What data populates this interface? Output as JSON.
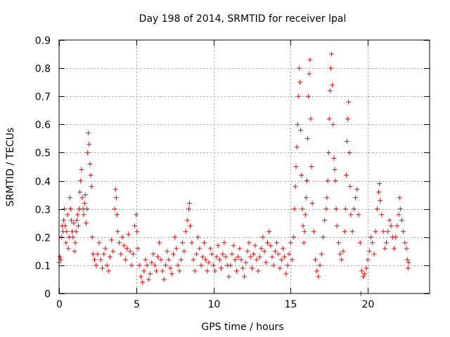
{
  "chart_data": {
    "type": "scatter",
    "title": "Day 198 of 2014, SRMTID for receiver lpal",
    "xlabel": "GPS time / hours",
    "ylabel": "SRMTID / TECUs",
    "xlim": [
      0,
      24
    ],
    "ylim": [
      0,
      0.9
    ],
    "xticks": [
      0,
      5,
      10,
      15,
      20
    ],
    "yticks": [
      0,
      0.1,
      0.2,
      0.3,
      0.4,
      0.5,
      0.6,
      0.7,
      0.8,
      0.9
    ],
    "xtick_labels": [
      "0",
      "5",
      "10",
      "15",
      "20"
    ],
    "ytick_labels": [
      "0",
      "0.1",
      "0.2",
      "0.3",
      "0.4",
      "0.5",
      "0.6",
      "0.7",
      "0.8",
      "0.9"
    ],
    "grid": true,
    "marker": "+",
    "color": "#ff0000",
    "series": [
      {
        "name": "SRMTID",
        "points": [
          [
            0.0,
            0.11
          ],
          [
            0.05,
            0.13
          ],
          [
            0.1,
            0.12
          ],
          [
            0.15,
            0.2
          ],
          [
            0.2,
            0.24
          ],
          [
            0.25,
            0.22
          ],
          [
            0.3,
            0.26
          ],
          [
            0.35,
            0.3
          ],
          [
            0.4,
            0.24
          ],
          [
            0.45,
            0.18
          ],
          [
            0.5,
            0.22
          ],
          [
            0.55,
            0.28
          ],
          [
            0.6,
            0.16
          ],
          [
            0.65,
            0.2
          ],
          [
            0.7,
            0.34
          ],
          [
            0.75,
            0.3
          ],
          [
            0.8,
            0.26
          ],
          [
            0.85,
            0.22
          ],
          [
            0.9,
            0.2
          ],
          [
            0.95,
            0.25
          ],
          [
            1.0,
            0.15
          ],
          [
            1.05,
            0.18
          ],
          [
            1.1,
            0.22
          ],
          [
            1.15,
            0.26
          ],
          [
            1.2,
            0.28
          ],
          [
            1.25,
            0.24
          ],
          [
            1.3,
            0.3
          ],
          [
            1.35,
            0.36
          ],
          [
            1.4,
            0.4
          ],
          [
            1.45,
            0.44
          ],
          [
            1.5,
            0.34
          ],
          [
            1.55,
            0.3
          ],
          [
            1.6,
            0.28
          ],
          [
            1.65,
            0.32
          ],
          [
            1.7,
            0.35
          ],
          [
            1.75,
            0.25
          ],
          [
            1.8,
            0.3
          ],
          [
            1.85,
            0.5
          ],
          [
            1.9,
            0.57
          ],
          [
            1.95,
            0.53
          ],
          [
            2.0,
            0.46
          ],
          [
            2.05,
            0.42
          ],
          [
            2.1,
            0.38
          ],
          [
            2.15,
            0.2
          ],
          [
            2.2,
            0.14
          ],
          [
            2.3,
            0.12
          ],
          [
            2.4,
            0.1
          ],
          [
            2.5,
            0.14
          ],
          [
            2.6,
            0.18
          ],
          [
            2.7,
            0.12
          ],
          [
            2.8,
            0.09
          ],
          [
            2.9,
            0.14
          ],
          [
            3.0,
            0.16
          ],
          [
            3.1,
            0.1
          ],
          [
            3.2,
            0.08
          ],
          [
            3.3,
            0.13
          ],
          [
            3.4,
            0.19
          ],
          [
            3.5,
            0.15
          ],
          [
            3.6,
            0.3
          ],
          [
            3.65,
            0.37
          ],
          [
            3.7,
            0.34
          ],
          [
            3.75,
            0.28
          ],
          [
            3.8,
            0.22
          ],
          [
            3.9,
            0.18
          ],
          [
            4.0,
            0.14
          ],
          [
            4.1,
            0.2
          ],
          [
            4.2,
            0.17
          ],
          [
            4.3,
            0.12
          ],
          [
            4.4,
            0.16
          ],
          [
            4.5,
            0.21
          ],
          [
            4.6,
            0.15
          ],
          [
            4.7,
            0.1
          ],
          [
            4.8,
            0.14
          ],
          [
            4.9,
            0.24
          ],
          [
            5.0,
            0.28
          ],
          [
            5.05,
            0.22
          ],
          [
            5.1,
            0.16
          ],
          [
            5.2,
            0.1
          ],
          [
            5.3,
            0.06
          ],
          [
            5.4,
            0.04
          ],
          [
            5.5,
            0.08
          ],
          [
            5.6,
            0.12
          ],
          [
            5.7,
            0.1
          ],
          [
            5.8,
            0.05
          ],
          [
            5.9,
            0.07
          ],
          [
            6.0,
            0.11
          ],
          [
            6.1,
            0.14
          ],
          [
            6.2,
            0.1
          ],
          [
            6.3,
            0.08
          ],
          [
            6.4,
            0.13
          ],
          [
            6.5,
            0.18
          ],
          [
            6.6,
            0.12
          ],
          [
            6.7,
            0.08
          ],
          [
            6.8,
            0.05
          ],
          [
            6.9,
            0.1
          ],
          [
            7.0,
            0.15
          ],
          [
            7.1,
            0.12
          ],
          [
            7.2,
            0.09
          ],
          [
            7.3,
            0.07
          ],
          [
            7.4,
            0.14
          ],
          [
            7.5,
            0.2
          ],
          [
            7.6,
            0.16
          ],
          [
            7.7,
            0.1
          ],
          [
            7.8,
            0.08
          ],
          [
            7.9,
            0.12
          ],
          [
            8.0,
            0.18
          ],
          [
            8.1,
            0.15
          ],
          [
            8.2,
            0.22
          ],
          [
            8.3,
            0.26
          ],
          [
            8.4,
            0.3
          ],
          [
            8.45,
            0.32
          ],
          [
            8.5,
            0.24
          ],
          [
            8.6,
            0.18
          ],
          [
            8.7,
            0.12
          ],
          [
            8.8,
            0.08
          ],
          [
            8.9,
            0.14
          ],
          [
            9.0,
            0.2
          ],
          [
            9.1,
            0.16
          ],
          [
            9.2,
            0.1
          ],
          [
            9.3,
            0.13
          ],
          [
            9.4,
            0.18
          ],
          [
            9.5,
            0.12
          ],
          [
            9.6,
            0.08
          ],
          [
            9.7,
            0.11
          ],
          [
            9.8,
            0.16
          ],
          [
            9.9,
            0.14
          ],
          [
            10.0,
            0.1
          ],
          [
            10.1,
            0.08
          ],
          [
            10.2,
            0.13
          ],
          [
            10.3,
            0.17
          ],
          [
            10.4,
            0.12
          ],
          [
            10.5,
            0.09
          ],
          [
            10.6,
            0.14
          ],
          [
            10.7,
            0.18
          ],
          [
            10.8,
            0.13
          ],
          [
            10.9,
            0.1
          ],
          [
            11.0,
            0.06
          ],
          [
            11.1,
            0.1
          ],
          [
            11.2,
            0.14
          ],
          [
            11.3,
            0.17
          ],
          [
            11.4,
            0.12
          ],
          [
            11.5,
            0.08
          ],
          [
            11.6,
            0.13
          ],
          [
            11.7,
            0.16
          ],
          [
            11.8,
            0.12
          ],
          [
            11.9,
            0.09
          ],
          [
            12.0,
            0.06
          ],
          [
            12.1,
            0.11
          ],
          [
            12.2,
            0.15
          ],
          [
            12.3,
            0.18
          ],
          [
            12.4,
            0.13
          ],
          [
            12.5,
            0.09
          ],
          [
            12.6,
            0.14
          ],
          [
            12.7,
            0.17
          ],
          [
            12.8,
            0.12
          ],
          [
            12.9,
            0.08
          ],
          [
            13.0,
            0.13
          ],
          [
            13.1,
            0.16
          ],
          [
            13.2,
            0.2
          ],
          [
            13.3,
            0.15
          ],
          [
            13.4,
            0.11
          ],
          [
            13.5,
            0.18
          ],
          [
            13.6,
            0.22
          ],
          [
            13.7,
            0.17
          ],
          [
            13.8,
            0.13
          ],
          [
            13.9,
            0.1
          ],
          [
            14.0,
            0.15
          ],
          [
            14.1,
            0.18
          ],
          [
            14.2,
            0.14
          ],
          [
            14.3,
            0.09
          ],
          [
            14.4,
            0.12
          ],
          [
            14.5,
            0.16
          ],
          [
            14.6,
            0.13
          ],
          [
            14.7,
            0.07
          ],
          [
            14.8,
            0.1
          ],
          [
            14.9,
            0.14
          ],
          [
            15.0,
            0.18
          ],
          [
            15.1,
            0.12
          ],
          [
            15.2,
            0.2
          ],
          [
            15.25,
            0.3
          ],
          [
            15.3,
            0.38
          ],
          [
            15.35,
            0.45
          ],
          [
            15.4,
            0.52
          ],
          [
            15.45,
            0.6
          ],
          [
            15.5,
            0.7
          ],
          [
            15.55,
            0.8
          ],
          [
            15.6,
            0.75
          ],
          [
            15.65,
            0.58
          ],
          [
            15.7,
            0.42
          ],
          [
            15.75,
            0.3
          ],
          [
            15.8,
            0.24
          ],
          [
            15.85,
            0.18
          ],
          [
            15.9,
            0.22
          ],
          [
            15.95,
            0.28
          ],
          [
            16.0,
            0.34
          ],
          [
            16.05,
            0.4
          ],
          [
            16.1,
            0.55
          ],
          [
            16.15,
            0.7
          ],
          [
            16.2,
            0.78
          ],
          [
            16.25,
            0.83
          ],
          [
            16.3,
            0.62
          ],
          [
            16.35,
            0.45
          ],
          [
            16.4,
            0.32
          ],
          [
            16.5,
            0.22
          ],
          [
            16.6,
            0.12
          ],
          [
            16.7,
            0.08
          ],
          [
            16.8,
            0.06
          ],
          [
            16.9,
            0.1
          ],
          [
            17.0,
            0.14
          ],
          [
            17.1,
            0.2
          ],
          [
            17.2,
            0.26
          ],
          [
            17.3,
            0.3
          ],
          [
            17.35,
            0.34
          ],
          [
            17.4,
            0.4
          ],
          [
            17.45,
            0.5
          ],
          [
            17.5,
            0.62
          ],
          [
            17.55,
            0.72
          ],
          [
            17.6,
            0.8
          ],
          [
            17.65,
            0.85
          ],
          [
            17.7,
            0.74
          ],
          [
            17.75,
            0.6
          ],
          [
            17.8,
            0.48
          ],
          [
            17.85,
            0.44
          ],
          [
            17.9,
            0.4
          ],
          [
            17.95,
            0.3
          ],
          [
            18.0,
            0.24
          ],
          [
            18.1,
            0.18
          ],
          [
            18.2,
            0.14
          ],
          [
            18.3,
            0.12
          ],
          [
            18.4,
            0.15
          ],
          [
            18.5,
            0.22
          ],
          [
            18.55,
            0.3
          ],
          [
            18.6,
            0.42
          ],
          [
            18.65,
            0.54
          ],
          [
            18.7,
            0.62
          ],
          [
            18.75,
            0.68
          ],
          [
            18.8,
            0.5
          ],
          [
            18.85,
            0.38
          ],
          [
            18.9,
            0.28
          ],
          [
            19.0,
            0.22
          ],
          [
            19.1,
            0.3
          ],
          [
            19.2,
            0.34
          ],
          [
            19.3,
            0.37
          ],
          [
            19.4,
            0.28
          ],
          [
            19.5,
            0.18
          ],
          [
            19.55,
            0.0
          ],
          [
            19.6,
            0.08
          ],
          [
            19.7,
            0.06
          ],
          [
            19.8,
            0.07
          ],
          [
            19.9,
            0.09
          ],
          [
            20.0,
            0.12
          ],
          [
            20.1,
            0.15
          ],
          [
            20.2,
            0.2
          ],
          [
            20.3,
            0.18
          ],
          [
            20.4,
            0.14
          ],
          [
            20.5,
            0.22
          ],
          [
            20.6,
            0.3
          ],
          [
            20.7,
            0.36
          ],
          [
            20.75,
            0.39
          ],
          [
            20.8,
            0.33
          ],
          [
            20.9,
            0.28
          ],
          [
            21.0,
            0.22
          ],
          [
            21.1,
            0.16
          ],
          [
            21.2,
            0.18
          ],
          [
            21.3,
            0.22
          ],
          [
            21.4,
            0.26
          ],
          [
            21.5,
            0.24
          ],
          [
            21.6,
            0.2
          ],
          [
            21.7,
            0.16
          ],
          [
            21.8,
            0.2
          ],
          [
            21.9,
            0.24
          ],
          [
            22.0,
            0.28
          ],
          [
            22.05,
            0.34
          ],
          [
            22.1,
            0.3
          ],
          [
            22.2,
            0.26
          ],
          [
            22.3,
            0.22
          ],
          [
            22.4,
            0.18
          ],
          [
            22.5,
            0.16
          ],
          [
            22.55,
            0.12
          ],
          [
            22.6,
            0.09
          ],
          [
            22.65,
            0.11
          ]
        ]
      }
    ]
  }
}
